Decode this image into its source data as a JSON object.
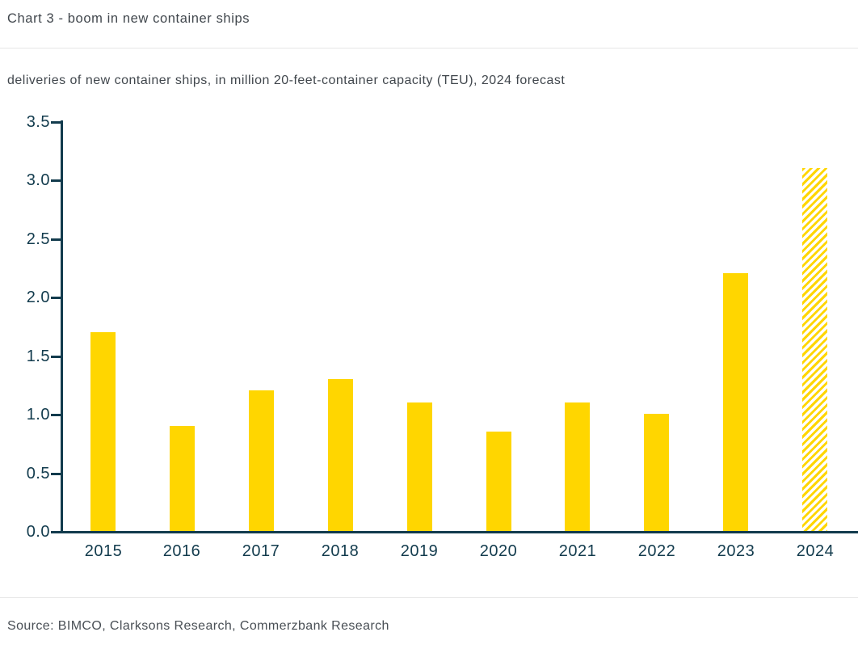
{
  "header": {
    "title": "Chart 3 - boom in new container ships",
    "subtitle": "deliveries of new container ships, in million 20-feet-container capacity (TEU), 2024 forecast"
  },
  "footer": {
    "source": "Source: BIMCO, Clarksons Research, Commerzbank Research"
  },
  "chart_data": {
    "type": "bar",
    "title": "Chart 3 - boom in new container ships",
    "subtitle": "deliveries of new container ships, in million 20-feet-container capacity (TEU), 2024 forecast",
    "categories": [
      "2015",
      "2016",
      "2017",
      "2018",
      "2019",
      "2020",
      "2021",
      "2022",
      "2023",
      "2024"
    ],
    "values": [
      1.7,
      0.9,
      1.2,
      1.3,
      1.1,
      0.85,
      1.1,
      1.0,
      2.2,
      3.1
    ],
    "forecast_categories": [
      "2024"
    ],
    "xlabel": "",
    "ylabel": "",
    "ylim": [
      0.0,
      3.5
    ],
    "yticks": [
      0.0,
      0.5,
      1.0,
      1.5,
      2.0,
      2.5,
      3.0,
      3.5
    ],
    "grid": false,
    "legend": "none",
    "bar_color": "#FFD600",
    "axis_color": "#123B4D",
    "forecast_style": "diagonal-hatch"
  }
}
